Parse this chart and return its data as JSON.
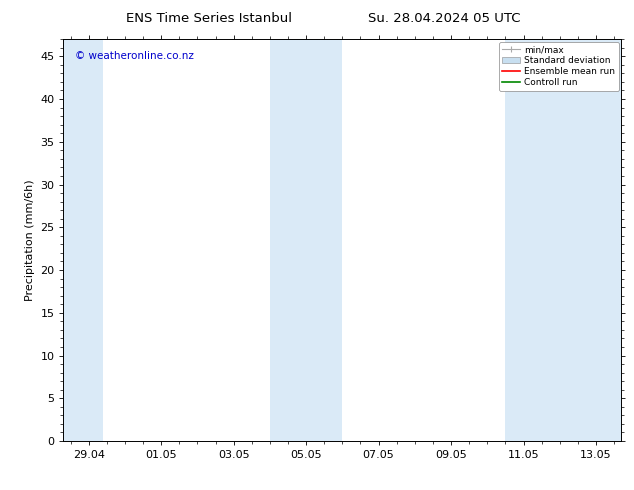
{
  "title_left": "ENS Time Series Istanbul",
  "title_right": "Su. 28.04.2024 05 UTC",
  "ylabel": "Precipitation (mm/6h)",
  "watermark": "© weatheronline.co.nz",
  "watermark_color": "#0000cc",
  "ylim": [
    0,
    47
  ],
  "yticks": [
    0,
    5,
    10,
    15,
    20,
    25,
    30,
    35,
    40,
    45
  ],
  "xtick_labels": [
    "29.04",
    "01.05",
    "03.05",
    "05.05",
    "07.05",
    "09.05",
    "11.05",
    "13.05"
  ],
  "shaded_color": "#daeaf7",
  "background_color": "#ffffff",
  "plot_bg_color": "#ffffff",
  "legend_items": [
    {
      "label": "min/max"
    },
    {
      "label": "Standard deviation"
    },
    {
      "label": "Ensemble mean run"
    },
    {
      "label": "Controll run"
    }
  ],
  "legend_colors": [
    "#aaaaaa",
    "#c8dff0",
    "#ff0000",
    "#008800"
  ],
  "border_color": "#000000",
  "tick_color": "#000000",
  "font_size": 8,
  "title_font_size": 9.5
}
